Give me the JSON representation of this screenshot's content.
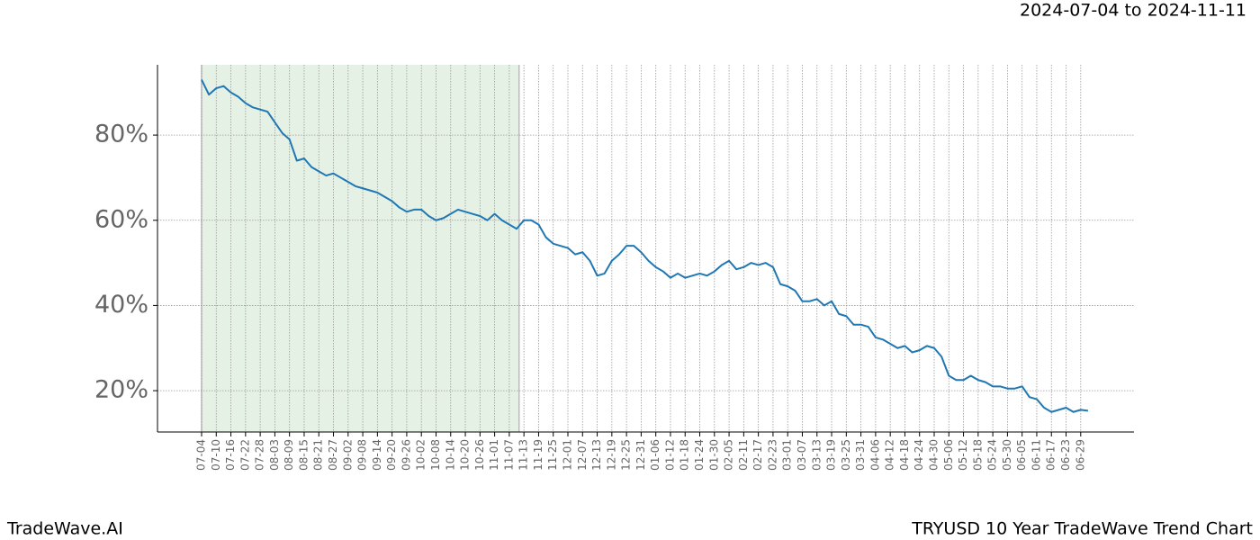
{
  "chart_data": {
    "type": "line",
    "title": "2024-07-04 to 2024-11-11",
    "footer_left": "TradeWave.AI",
    "footer_right": "TRYUSD 10 Year TradeWave Trend Chart",
    "categories": [
      "07-04",
      null,
      "07-10",
      null,
      "07-16",
      null,
      "07-22",
      null,
      "07-28",
      null,
      "08-03",
      null,
      "08-09",
      null,
      "08-15",
      null,
      "08-21",
      null,
      "08-27",
      null,
      "09-02",
      null,
      "09-08",
      null,
      "09-14",
      null,
      "09-20",
      null,
      "09-26",
      null,
      "10-02",
      null,
      "10-08",
      null,
      "10-14",
      null,
      "10-20",
      null,
      "10-26",
      null,
      "11-01",
      null,
      "11-07",
      null,
      "11-13",
      null,
      "11-19",
      null,
      "11-25",
      null,
      "12-01",
      null,
      "12-07",
      null,
      "12-13",
      null,
      "12-19",
      null,
      "12-25",
      null,
      "12-31",
      null,
      "01-06",
      null,
      "01-12",
      null,
      "01-18",
      null,
      "01-24",
      null,
      "01-30",
      null,
      "02-05",
      null,
      "02-11",
      null,
      "02-17",
      null,
      "02-23",
      null,
      "03-01",
      null,
      "03-07",
      null,
      "03-13",
      null,
      "03-19",
      null,
      "03-25",
      null,
      "03-31",
      null,
      "04-06",
      null,
      "04-12",
      null,
      "04-18",
      null,
      "04-24",
      null,
      "04-30",
      null,
      "05-06",
      null,
      "05-12",
      null,
      "05-18",
      null,
      "05-24",
      null,
      "05-30",
      null,
      "06-05",
      null,
      "06-11",
      null,
      "06-17",
      null,
      "06-23",
      null,
      "06-29",
      null
    ],
    "series": [
      {
        "color": "#1f77b4",
        "values": [
          93,
          89.5,
          91,
          91.5,
          90,
          89,
          87.5,
          86.5,
          86,
          85.5,
          83,
          80.5,
          79,
          74,
          74.5,
          72.5,
          71.5,
          70.5,
          71,
          70,
          69,
          68,
          67.5,
          67,
          66.5,
          65.5,
          64.5,
          63,
          62,
          62.5,
          62.5,
          61,
          60,
          60.5,
          61.5,
          62.5,
          62,
          61.5,
          61,
          60,
          61.5,
          60,
          59,
          58,
          60,
          60,
          59,
          56,
          54.5,
          54,
          53.5,
          52,
          52.5,
          50.5,
          47,
          47.5,
          50.5,
          52,
          54,
          54,
          52.5,
          50.5,
          49,
          48,
          46.5,
          47.5,
          46.5,
          47,
          47.5,
          47,
          48,
          49.5,
          50.5,
          48.5,
          49,
          50,
          49.5,
          50,
          49,
          45,
          44.5,
          43.5,
          41,
          41,
          41.5,
          40,
          41,
          38,
          37.5,
          35.5,
          35.5,
          35,
          32.5,
          32,
          31,
          30,
          30.5,
          29,
          29.5,
          30.5,
          30,
          28,
          23.5,
          22.5,
          22.5,
          23.5,
          22.5,
          22,
          21,
          21,
          20.5,
          20.5,
          21,
          18.5,
          18,
          16,
          15,
          15.5,
          16,
          15,
          15.5,
          15.3
        ]
      }
    ],
    "shade_color": "#e5f1e5",
    "ylim": [
      10.3,
      96.5
    ],
    "yticks": [
      {
        "value": 20,
        "label": "20%"
      },
      {
        "value": 40,
        "label": "40%"
      },
      {
        "value": 60,
        "label": "60%"
      },
      {
        "value": 80,
        "label": "80%"
      }
    ],
    "grid": true
  }
}
